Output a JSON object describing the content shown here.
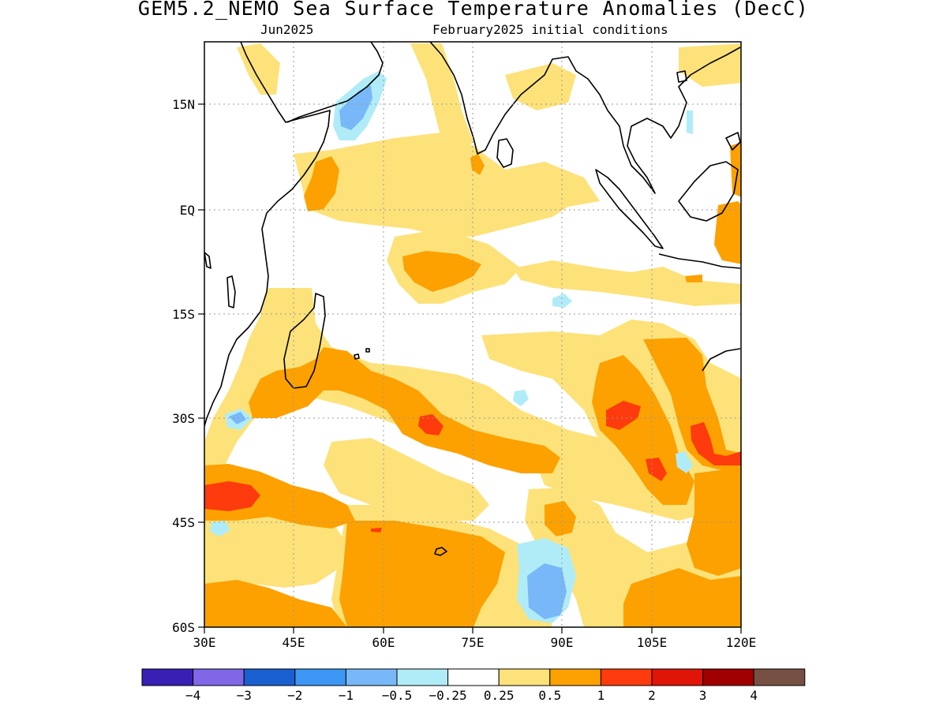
{
  "title": "GEM5.2_NEMO Sea Surface Temperature Anomalies (DecC)",
  "subtitle_left": "Jun2025",
  "subtitle_right": "February2025 initial conditions",
  "lat_labels": [
    "15N",
    "EQ",
    "15S",
    "30S",
    "45S",
    "60S"
  ],
  "lon_labels": [
    "30E",
    "45E",
    "60E",
    "75E",
    "90E",
    "105E",
    "120E"
  ],
  "colorbar": {
    "colors": [
      "#3a1fb4",
      "#7f67e8",
      "#1a5fd0",
      "#3d97f4",
      "#78b8f8",
      "#b0ecf8",
      "#ffffff",
      "#fde27a",
      "#fca100",
      "#fd3b0c",
      "#df1508",
      "#a10000",
      "#775044"
    ],
    "labels": [
      "−4",
      "−3",
      "−2",
      "−1",
      "−0.5",
      "−0.25",
      "0.25",
      "0.5",
      "1",
      "2",
      "3",
      "4"
    ]
  },
  "palette": {
    "warm_0_5": "#fde27a",
    "warm_1": "#fca100",
    "warm_2": "#fd3b0c",
    "cool_0_25": "#b0ecf8",
    "cool_0_5": "#78b8f8"
  }
}
